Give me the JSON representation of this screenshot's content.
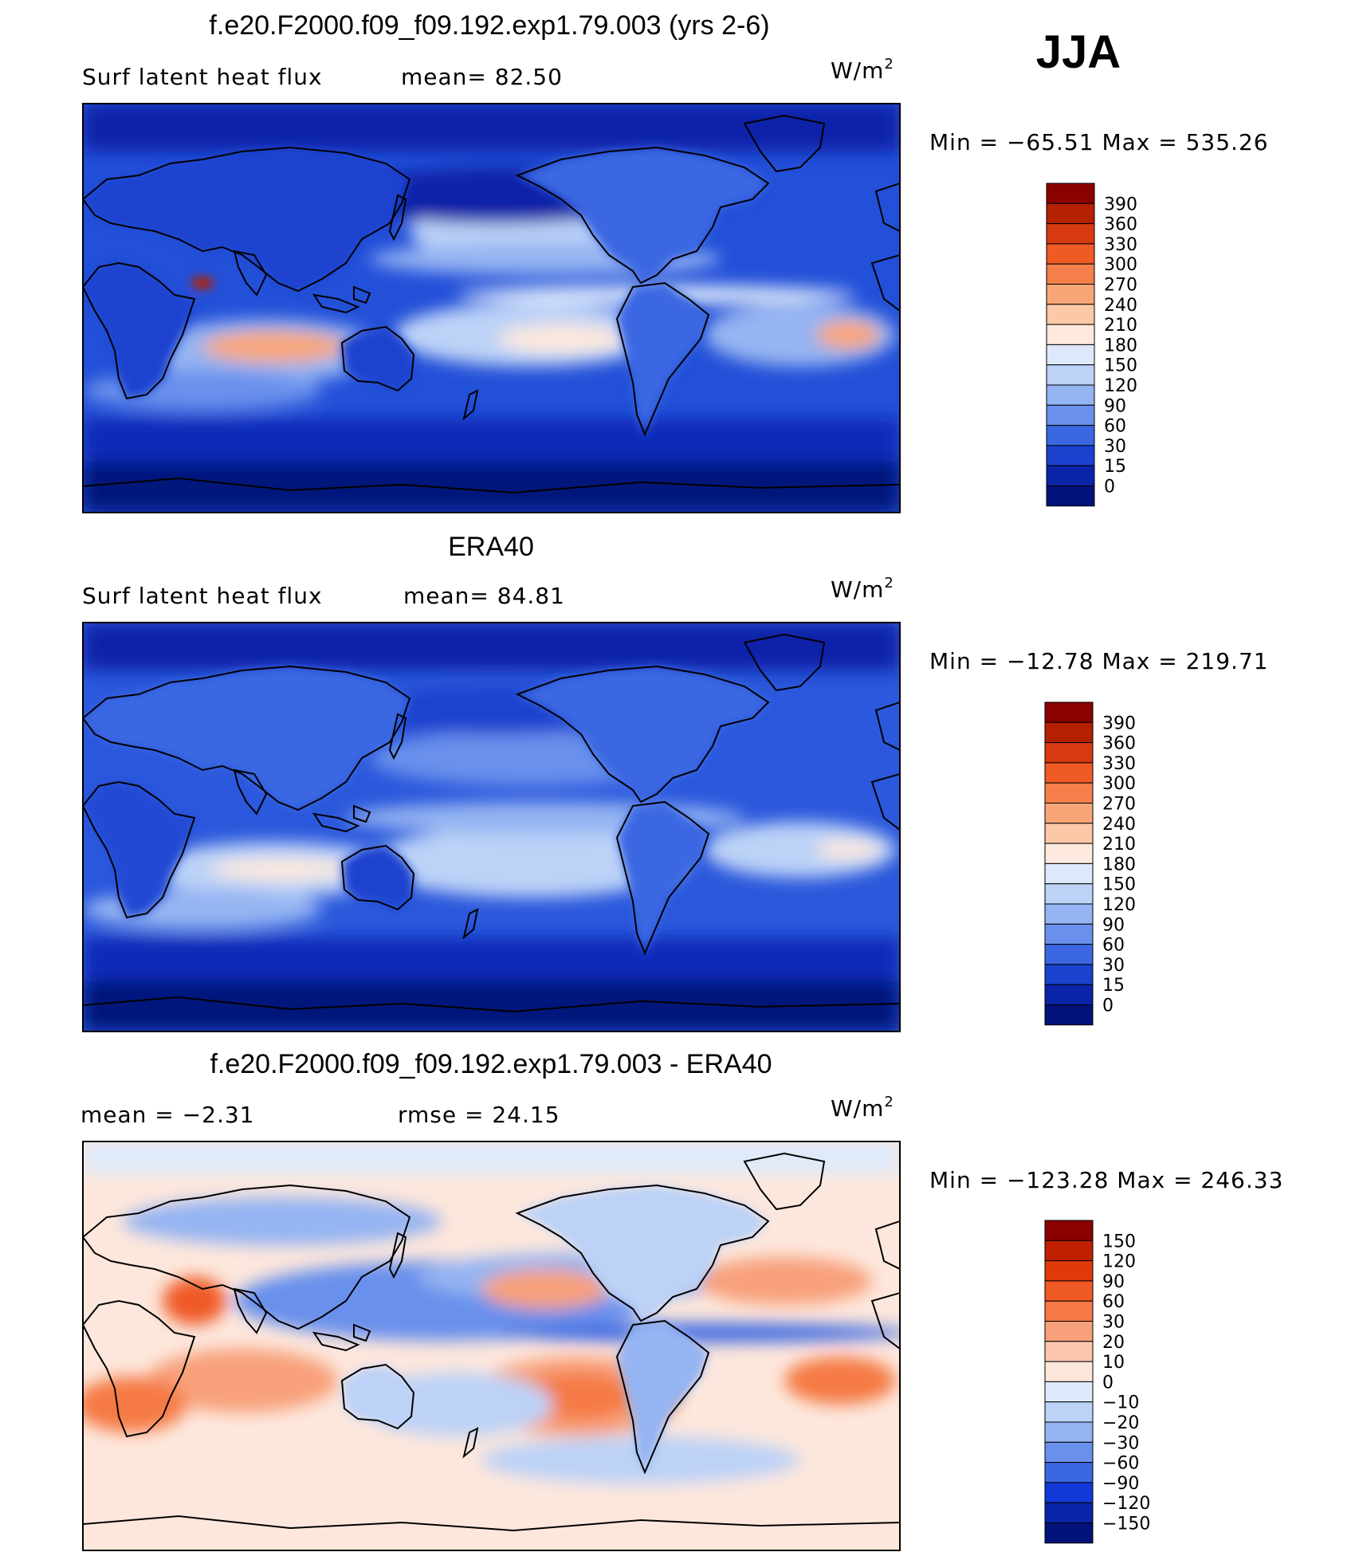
{
  "season": "JJA",
  "chart_data": [
    {
      "type": "heatmap",
      "title": "f.e20.F2000.f09_f09.192.exp1.79.003 (yrs 2-6)",
      "variable": "Surf  latent  heat  flux",
      "stat_left": "mean=   82.50",
      "units": "W/m",
      "units_sup": "2",
      "minmax": "Min  =  −65.51  Max  =  535.26",
      "min": -65.51,
      "max": 535.26,
      "mean": 82.5,
      "legend_levels": [
        "390",
        "360",
        "330",
        "300",
        "270",
        "240",
        "210",
        "180",
        "150",
        "120",
        "90",
        "60",
        "30",
        "15",
        "0"
      ],
      "legend_colors": [
        "#8b0000",
        "#b52000",
        "#d83a10",
        "#ef5a25",
        "#f5804b",
        "#f8a678",
        "#fbc8a8",
        "#fde9dd",
        "#dde9fb",
        "#bcd2f7",
        "#94b4f2",
        "#6990ec",
        "#3b67e2",
        "#1a42cf",
        "#0a24a8",
        "#02127a"
      ]
    },
    {
      "type": "heatmap",
      "title": "ERA40",
      "variable": "Surf  latent  heat  flux",
      "stat_left": "mean=   84.81",
      "units": "W/m",
      "units_sup": "2",
      "minmax": "Min  =  −12.78  Max  =  219.71",
      "min": -12.78,
      "max": 219.71,
      "mean": 84.81,
      "legend_levels": [
        "390",
        "360",
        "330",
        "300",
        "270",
        "240",
        "210",
        "180",
        "150",
        "120",
        "90",
        "60",
        "30",
        "15",
        "0"
      ],
      "legend_colors": [
        "#8b0000",
        "#b52000",
        "#d83a10",
        "#ef5a25",
        "#f5804b",
        "#f8a678",
        "#fbc8a8",
        "#fde9dd",
        "#dde9fb",
        "#bcd2f7",
        "#94b4f2",
        "#6990ec",
        "#3b67e2",
        "#1a42cf",
        "#0a24a8",
        "#02127a"
      ]
    },
    {
      "type": "heatmap",
      "title": "f.e20.F2000.f09_f09.192.exp1.79.003 - ERA40",
      "stat_left": "mean  =    −2.31",
      "stat_right": "rmse  =    24.15",
      "units": "W/m",
      "units_sup": "2",
      "minmax": "Min  =  −123.28  Max  =  246.33",
      "min": -123.28,
      "max": 246.33,
      "mean": -2.31,
      "rmse": 24.15,
      "legend_levels": [
        "150",
        "120",
        "90",
        "60",
        "30",
        "20",
        "10",
        "0",
        "−10",
        "−20",
        "−30",
        "−60",
        "−90",
        "−120",
        "−150"
      ],
      "legend_colors": [
        "#8b0000",
        "#c02000",
        "#e03a0a",
        "#ef5a25",
        "#f57a45",
        "#f8a07a",
        "#fbc6ac",
        "#fde7dc",
        "#deeafb",
        "#bcd2f7",
        "#94b4f2",
        "#6990ec",
        "#3b67e2",
        "#1238d8",
        "#0a24a8",
        "#02127a"
      ]
    }
  ]
}
